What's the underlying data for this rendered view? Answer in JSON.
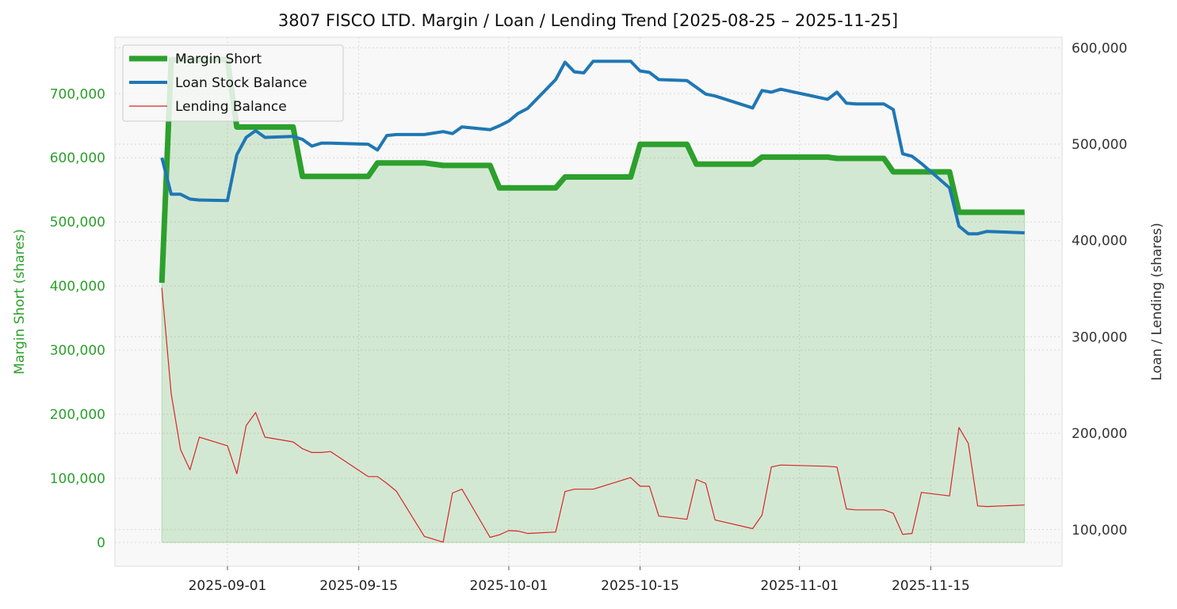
{
  "chart_data": {
    "type": "line",
    "title": "3807 FISCO LTD. Margin / Loan / Lending Trend [2025-08-25 – 2025-11-25]",
    "xlabel": "",
    "ylabel_left": "Margin Short (shares)",
    "ylabel_right": "Loan / Lending (shares)",
    "xlim": [
      "2025-08-20",
      "2025-11-29"
    ],
    "ylim_left": [
      -37000,
      788000
    ],
    "ylim_right": [
      62000,
      611000
    ],
    "x_ticks": [
      "2025-09-01",
      "2025-09-15",
      "2025-10-01",
      "2025-10-15",
      "2025-11-01",
      "2025-11-15"
    ],
    "y_ticks_left": [
      0,
      100000,
      200000,
      300000,
      400000,
      500000,
      600000,
      700000
    ],
    "y_tick_labels_left": [
      "0",
      "100,000",
      "200,000",
      "300,000",
      "400,000",
      "500,000",
      "600,000",
      "700,000"
    ],
    "y_ticks_right": [
      100000,
      200000,
      300000,
      400000,
      500000,
      600000
    ],
    "y_tick_labels_right": [
      "100,000",
      "200,000",
      "300,000",
      "400,000",
      "500,000",
      "600,000"
    ],
    "grid": true,
    "legend_position": "top-left",
    "x": [
      "2025-08-25",
      "2025-08-26",
      "2025-08-27",
      "2025-08-28",
      "2025-08-29",
      "2025-09-01",
      "2025-09-02",
      "2025-09-03",
      "2025-09-04",
      "2025-09-05",
      "2025-09-08",
      "2025-09-09",
      "2025-09-10",
      "2025-09-11",
      "2025-09-12",
      "2025-09-16",
      "2025-09-17",
      "2025-09-18",
      "2025-09-19",
      "2025-09-22",
      "2025-09-24",
      "2025-09-25",
      "2025-09-26",
      "2025-09-29",
      "2025-09-30",
      "2025-10-01",
      "2025-10-02",
      "2025-10-03",
      "2025-10-06",
      "2025-10-07",
      "2025-10-08",
      "2025-10-09",
      "2025-10-10",
      "2025-10-14",
      "2025-10-15",
      "2025-10-16",
      "2025-10-17",
      "2025-10-20",
      "2025-10-21",
      "2025-10-22",
      "2025-10-23",
      "2025-10-27",
      "2025-10-28",
      "2025-10-29",
      "2025-10-30",
      "2025-11-04",
      "2025-11-05",
      "2025-11-06",
      "2025-11-07",
      "2025-11-10",
      "2025-11-11",
      "2025-11-12",
      "2025-11-13",
      "2025-11-14",
      "2025-11-17",
      "2025-11-18",
      "2025-11-19",
      "2025-11-20",
      "2025-11-21",
      "2025-11-25"
    ],
    "series": [
      {
        "name": "Margin Short",
        "axis": "left",
        "color": "#2ca02c",
        "fill": true,
        "values": [
          405000,
          753000,
          753000,
          753000,
          753000,
          753000,
          648000,
          648000,
          648000,
          648000,
          648000,
          571000,
          571000,
          571000,
          571000,
          571000,
          592000,
          592000,
          592000,
          592000,
          588000,
          588000,
          588000,
          588000,
          553000,
          553000,
          553000,
          553000,
          553000,
          570000,
          570000,
          570000,
          570000,
          570000,
          621000,
          621000,
          621000,
          621000,
          590000,
          590000,
          590000,
          590000,
          601000,
          601000,
          601000,
          601000,
          599000,
          599000,
          599000,
          599000,
          578000,
          578000,
          578000,
          578000,
          578000,
          515000,
          515000,
          515000,
          515000,
          515000
        ]
      },
      {
        "name": "Loan Stock Balance",
        "axis": "right",
        "color": "#1f77b4",
        "values": [
          486000,
          448000,
          448000,
          443000,
          442000,
          441500,
          489000,
          507000,
          514000,
          507000,
          508000,
          505000,
          498000,
          501000,
          501000,
          500000,
          494000,
          509000,
          510000,
          510000,
          513000,
          511000,
          518000,
          515000,
          519000,
          524000,
          532000,
          537000,
          567000,
          585000,
          575000,
          574000,
          586000,
          586000,
          576000,
          574500,
          567000,
          566000,
          559000,
          552000,
          550000,
          537600,
          555700,
          554000,
          557000,
          546600,
          554000,
          542500,
          541700,
          541700,
          536000,
          490000,
          487500,
          480000,
          454700,
          415000,
          407000,
          407000,
          409500,
          408000
        ]
      },
      {
        "name": "Lending Balance",
        "axis": "right",
        "color": "#d62728",
        "values": [
          351000,
          241000,
          183000,
          162000,
          196000,
          187000,
          158000,
          208000,
          221500,
          196000,
          191000,
          184000,
          180000,
          180000,
          181000,
          155000,
          155000,
          148000,
          140000,
          93000,
          87000,
          138000,
          142000,
          92000,
          94600,
          99000,
          98500,
          96000,
          97500,
          139500,
          142000,
          142000,
          142000,
          154000,
          145000,
          145000,
          114000,
          110700,
          152000,
          148000,
          110000,
          101000,
          115000,
          165000,
          167000,
          165700,
          165000,
          121500,
          120500,
          120500,
          117000,
          95000,
          96000,
          138600,
          135000,
          206000,
          189500,
          124600,
          124000,
          125500
        ]
      }
    ]
  }
}
